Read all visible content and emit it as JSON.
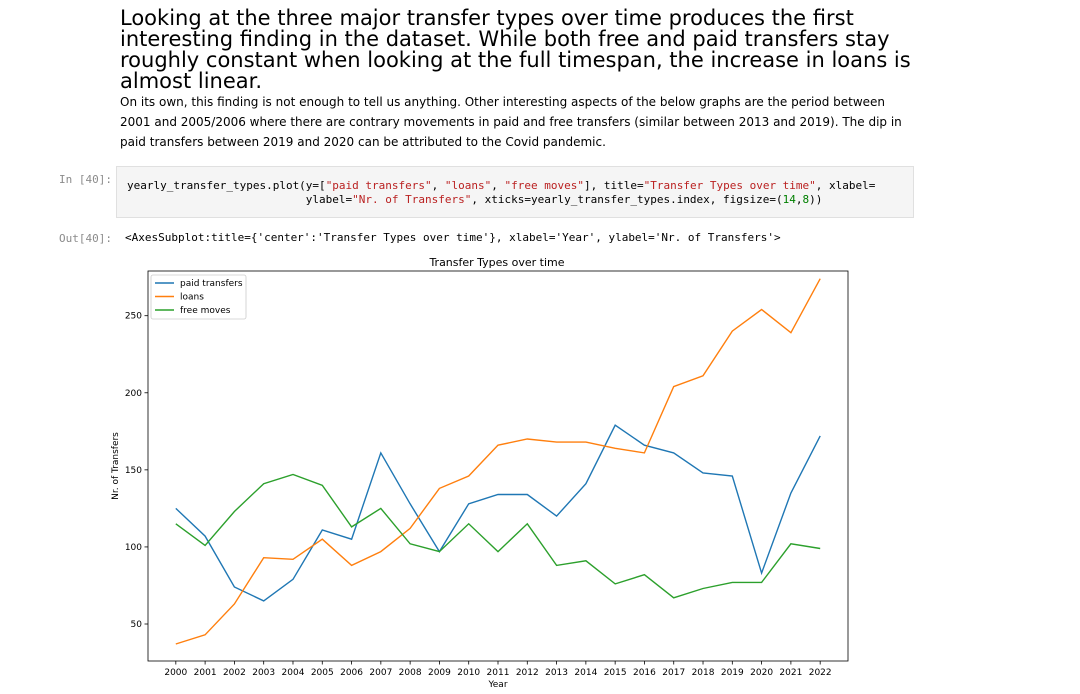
{
  "markdown": {
    "heading": "Looking at the three major transfer types over time produces the first interesting finding in the dataset. While both free and paid transfers stay roughly constant when looking at the full timespan, the increase in loans is almost linear.",
    "paragraph": "On its own, this finding is not enough to tell us anything. Other interesting aspects of the below graphs are the period between 2001 and 2005/2006 where there are contrary movements in paid and free transfers (similar between 2013 and 2019). The dip in paid transfers between 2019 and 2020 can be attributed to the Covid pandemic."
  },
  "cell": {
    "in_prompt": "In [40]:",
    "out_prompt": "Out[40]:",
    "code_line1_a": "yearly_transfer_types.plot(y=[",
    "code_str1": "\"paid transfers\"",
    "code_sep1": ", ",
    "code_str2": "\"loans\"",
    "code_sep2": ", ",
    "code_str3": "\"free moves\"",
    "code_mid1": "], title=",
    "code_str4": "\"Transfer Types over time\"",
    "code_mid2": ", xlabel=",
    "code_line2_indent": "                           ylabel=",
    "code_str5": "\"Nr. of Transfers\"",
    "code_mid3": ", xticks=yearly_transfer_types.index, figsize=(",
    "code_num1": "14",
    "code_comma": ",",
    "code_num2": "8",
    "code_end": "))",
    "output_text": "<AxesSubplot:title={'center':'Transfer Types over time'}, xlabel='Year', ylabel='Nr. of Transfers'>"
  },
  "chart_data": {
    "type": "line",
    "title": "Transfer Types over time",
    "xlabel": "Year",
    "ylabel": "Nr. of Transfers",
    "x": [
      2000,
      2001,
      2002,
      2003,
      2004,
      2005,
      2006,
      2007,
      2008,
      2009,
      2010,
      2011,
      2012,
      2013,
      2014,
      2015,
      2016,
      2017,
      2018,
      2019,
      2020,
      2021,
      2022
    ],
    "xlim": [
      1999.05,
      2022.95
    ],
    "ylim": [
      26,
      279
    ],
    "yticks": [
      50,
      100,
      150,
      200,
      250
    ],
    "grid": false,
    "legend_position": "upper left",
    "series": [
      {
        "name": "paid transfers",
        "color": "#1f77b4",
        "values": [
          125,
          107,
          74,
          65,
          79,
          111,
          105,
          161,
          128,
          97,
          128,
          134,
          134,
          120,
          141,
          179,
          166,
          161,
          148,
          146,
          83,
          135,
          172
        ]
      },
      {
        "name": "loans",
        "color": "#ff7f0e",
        "values": [
          37,
          43,
          63,
          93,
          92,
          105,
          88,
          97,
          112,
          138,
          146,
          166,
          170,
          168,
          168,
          164,
          161,
          204,
          211,
          240,
          254,
          239,
          274
        ]
      },
      {
        "name": "free moves",
        "color": "#2ca02c",
        "values": [
          115,
          101,
          123,
          141,
          147,
          140,
          113,
          125,
          102,
          97,
          115,
          97,
          115,
          88,
          91,
          76,
          82,
          67,
          73,
          77,
          77,
          102,
          99
        ]
      }
    ]
  }
}
